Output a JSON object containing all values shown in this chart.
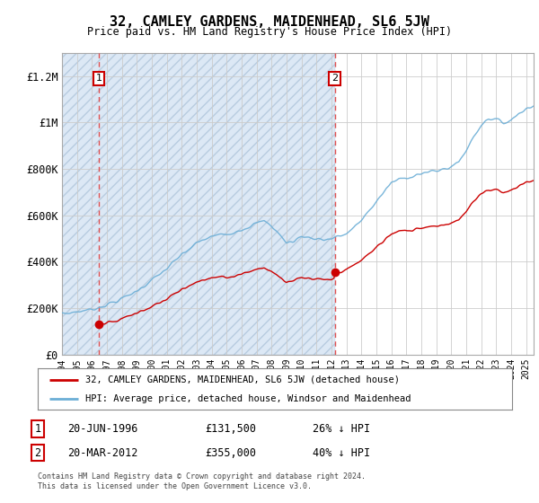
{
  "title": "32, CAMLEY GARDENS, MAIDENHEAD, SL6 5JW",
  "subtitle": "Price paid vs. HM Land Registry's House Price Index (HPI)",
  "ylabel_ticks": [
    "£0",
    "£200K",
    "£400K",
    "£600K",
    "£800K",
    "£1M",
    "£1.2M"
  ],
  "ytick_values": [
    0,
    200000,
    400000,
    600000,
    800000,
    1000000,
    1200000
  ],
  "ylim": [
    0,
    1300000
  ],
  "xlim_start": 1994.0,
  "xlim_end": 2025.5,
  "hpi_color": "#6baed6",
  "price_color": "#cc0000",
  "dashed_color": "#e05050",
  "hatch_facecolor": "#dce8f5",
  "hatch_edgecolor": "#b8cce0",
  "sale1_year": 1996.47,
  "sale1_price": 131500,
  "sale2_year": 2012.22,
  "sale2_price": 355000,
  "legend_label1": "32, CAMLEY GARDENS, MAIDENHEAD, SL6 5JW (detached house)",
  "legend_label2": "HPI: Average price, detached house, Windsor and Maidenhead",
  "footer": "Contains HM Land Registry data © Crown copyright and database right 2024.\nThis data is licensed under the Open Government Licence v3.0.",
  "xtick_years": [
    1994,
    1995,
    1996,
    1997,
    1998,
    1999,
    2000,
    2001,
    2002,
    2003,
    2004,
    2005,
    2006,
    2007,
    2008,
    2009,
    2010,
    2011,
    2012,
    2013,
    2014,
    2015,
    2016,
    2017,
    2018,
    2019,
    2020,
    2021,
    2022,
    2023,
    2024,
    2025
  ]
}
